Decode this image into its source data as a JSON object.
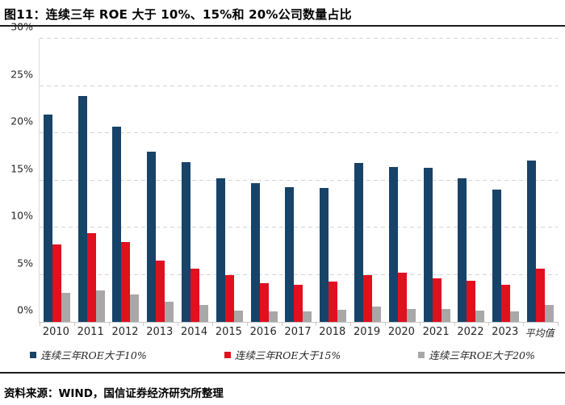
{
  "title": "图11：连续三年 ROE 大于 10%、15%和 20%公司数量占比",
  "source": "资料来源：WIND，国信证券经济研究所整理",
  "colors": {
    "series_blue": "#174368",
    "series_red": "#e0101f",
    "series_gray": "#a8a8a8",
    "grid": "#d4d4d4",
    "rule": "#1f1f1f",
    "axis_text": "#262626"
  },
  "chart_data": {
    "type": "bar",
    "title": "连续三年 ROE 大于 10%、15%和 20%公司数量占比",
    "categories": [
      "2010",
      "2011",
      "2012",
      "2013",
      "2014",
      "2015",
      "2016",
      "2017",
      "2018",
      "2019",
      "2020",
      "2021",
      "2022",
      "2023",
      "平均值"
    ],
    "series": [
      {
        "name": "连续三年ROE大于10%",
        "color_key": "series_blue",
        "values": [
          22.0,
          23.9,
          20.7,
          18.0,
          16.9,
          15.2,
          14.7,
          14.3,
          14.2,
          16.8,
          16.4,
          16.3,
          15.2,
          14.0,
          17.1
        ]
      },
      {
        "name": "连续三年ROE大于15%",
        "color_key": "series_red",
        "values": [
          8.2,
          9.4,
          8.5,
          6.5,
          5.6,
          5.0,
          4.1,
          3.9,
          4.3,
          5.0,
          5.2,
          4.6,
          4.4,
          3.9,
          5.6
        ]
      },
      {
        "name": "连续三年ROE大于20%",
        "color_key": "series_gray",
        "values": [
          3.1,
          3.3,
          2.9,
          2.1,
          1.8,
          1.2,
          1.1,
          1.1,
          1.3,
          1.6,
          1.4,
          1.4,
          1.2,
          1.1,
          1.8
        ]
      }
    ],
    "xlabel": "",
    "ylabel": "",
    "ylim": [
      0,
      30
    ],
    "ytick_step": 5,
    "ytick_labels": [
      "0%",
      "5%",
      "10%",
      "15%",
      "20%",
      "25%",
      "30%"
    ],
    "grid": "horizontal-dashed",
    "legend_position": "bottom"
  }
}
